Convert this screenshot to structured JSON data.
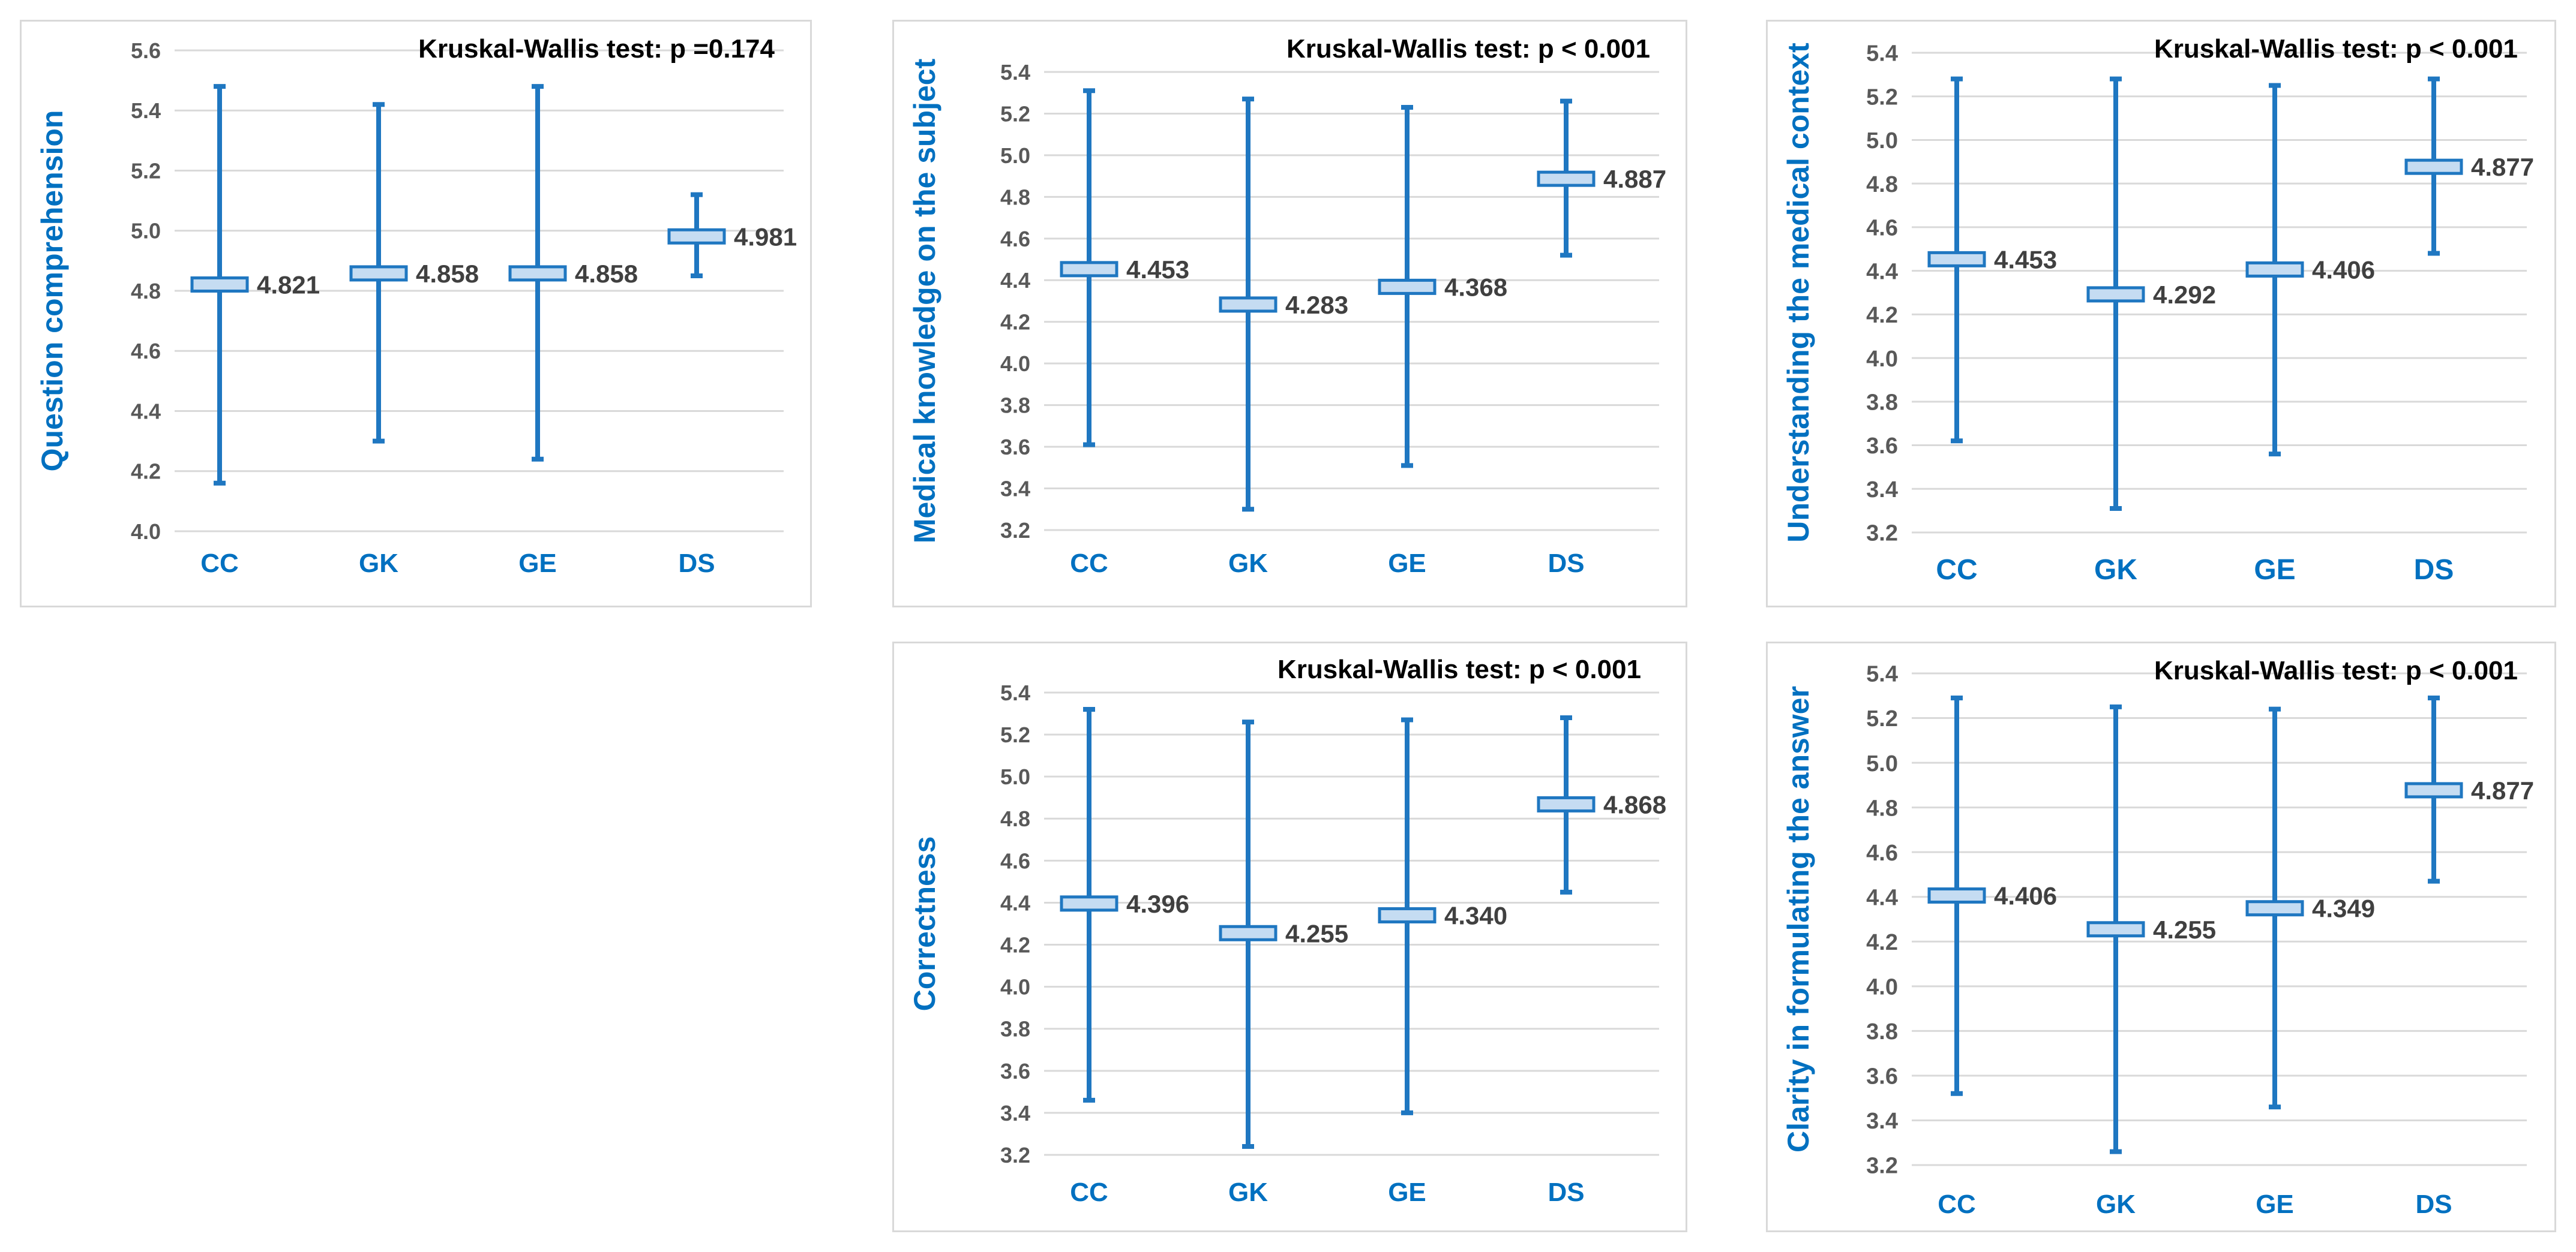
{
  "chart_data": [
    {
      "type": "errorbar",
      "annotation": "Kruskal-Wallis test: p =0.174",
      "ylabel": "Question comprehension",
      "ylim": [
        4.0,
        5.6
      ],
      "yticks": [
        "4.0",
        "4.2",
        "4.4",
        "4.6",
        "4.8",
        "5.0",
        "5.2",
        "5.4",
        "5.6"
      ],
      "grid": true,
      "categories": [
        "CC",
        "GK",
        "GE",
        "DS"
      ],
      "means": [
        4.821,
        4.858,
        4.858,
        4.981
      ],
      "mean_labels": [
        "4.821",
        "4.858",
        "4.858",
        "4.981"
      ],
      "lower": [
        4.16,
        4.3,
        4.24,
        4.85
      ],
      "upper": [
        5.48,
        5.42,
        5.48,
        5.12
      ]
    },
    {
      "type": "errorbar",
      "annotation": "Kruskal-Wallis test: p < 0.001",
      "ylabel": "Medical knowledge on the subject",
      "ylim": [
        3.2,
        5.4
      ],
      "yticks": [
        "3.2",
        "3.4",
        "3.6",
        "3.8",
        "4.0",
        "4.2",
        "4.4",
        "4.6",
        "4.8",
        "5.0",
        "5.2",
        "5.4"
      ],
      "grid": true,
      "categories": [
        "CC",
        "GK",
        "GE",
        "DS"
      ],
      "means": [
        4.453,
        4.283,
        4.368,
        4.887
      ],
      "mean_labels": [
        "4.453",
        "4.283",
        "4.368",
        "4.887"
      ],
      "lower": [
        3.61,
        3.3,
        3.51,
        4.52
      ],
      "upper": [
        5.31,
        5.27,
        5.23,
        5.26
      ]
    },
    {
      "type": "errorbar",
      "annotation": "Kruskal-Wallis test: p < 0.001",
      "ylabel": "Understanding the medical context",
      "ylim": [
        3.2,
        5.4
      ],
      "yticks": [
        "3.2",
        "3.4",
        "3.6",
        "3.8",
        "4.0",
        "4.2",
        "4.4",
        "4.6",
        "4.8",
        "5.0",
        "5.2",
        "5.4"
      ],
      "grid": true,
      "categories": [
        "CC",
        "GK",
        "GE",
        "DS"
      ],
      "means": [
        4.453,
        4.292,
        4.406,
        4.877
      ],
      "mean_labels": [
        "4.453",
        "4.292",
        "4.406",
        "4.877"
      ],
      "lower": [
        3.62,
        3.31,
        3.56,
        4.48
      ],
      "upper": [
        5.28,
        5.28,
        5.25,
        5.28
      ]
    },
    {
      "type": "errorbar",
      "annotation": "Kruskal-Wallis test: p < 0.001",
      "ylabel": "Correctness",
      "ylim": [
        3.2,
        5.4
      ],
      "yticks": [
        "3.2",
        "3.4",
        "3.6",
        "3.8",
        "4.0",
        "4.2",
        "4.4",
        "4.6",
        "4.8",
        "5.0",
        "5.2",
        "5.4"
      ],
      "grid": true,
      "categories": [
        "CC",
        "GK",
        "GE",
        "DS"
      ],
      "means": [
        4.396,
        4.255,
        4.34,
        4.868
      ],
      "mean_labels": [
        "4.396",
        "4.255",
        "4.340",
        "4.868"
      ],
      "lower": [
        3.46,
        3.24,
        3.4,
        4.45
      ],
      "upper": [
        5.32,
        5.26,
        5.27,
        5.28
      ]
    },
    {
      "type": "errorbar",
      "annotation": "Kruskal-Wallis test: p < 0.001",
      "ylabel": "Clarity in formulating the answer",
      "ylim": [
        3.2,
        5.4
      ],
      "yticks": [
        "3.2",
        "3.4",
        "3.6",
        "3.8",
        "4.0",
        "4.2",
        "4.4",
        "4.6",
        "4.8",
        "5.0",
        "5.2",
        "5.4"
      ],
      "grid": true,
      "categories": [
        "CC",
        "GK",
        "GE",
        "DS"
      ],
      "means": [
        4.406,
        4.255,
        4.349,
        4.877
      ],
      "mean_labels": [
        "4.406",
        "4.255",
        "4.349",
        "4.877"
      ],
      "lower": [
        3.52,
        3.26,
        3.46,
        4.47
      ],
      "upper": [
        5.29,
        5.25,
        5.24,
        5.29
      ]
    }
  ],
  "colors": {
    "series": "#1f77c1",
    "mean_box_fill": "#c5dcf2",
    "axis_label": "#0070c0",
    "tick_label": "#595959",
    "mean_label": "#404040",
    "annotation": "#000000",
    "grid": "#d9d9d9"
  }
}
